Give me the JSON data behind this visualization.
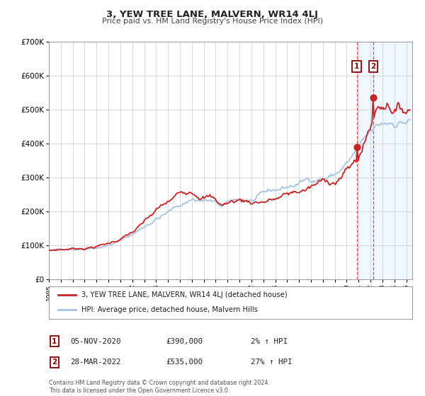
{
  "title": "3, YEW TREE LANE, MALVERN, WR14 4LJ",
  "subtitle": "Price paid vs. HM Land Registry's House Price Index (HPI)",
  "ylim": [
    0,
    700000
  ],
  "yticks": [
    0,
    100000,
    200000,
    300000,
    400000,
    500000,
    600000,
    700000
  ],
  "ytick_labels": [
    "£0",
    "£100K",
    "£200K",
    "£300K",
    "£400K",
    "£500K",
    "£600K",
    "£700K"
  ],
  "xlim_start": 1995.0,
  "xlim_end": 2025.5,
  "xticks": [
    1995,
    1996,
    1997,
    1998,
    1999,
    2000,
    2001,
    2002,
    2003,
    2004,
    2005,
    2006,
    2007,
    2008,
    2009,
    2010,
    2011,
    2012,
    2013,
    2014,
    2015,
    2016,
    2017,
    2018,
    2019,
    2020,
    2021,
    2022,
    2023,
    2024,
    2025
  ],
  "hpi_color": "#a8c4e0",
  "price_color": "#cc2222",
  "sale1_x": 2020.84,
  "sale1_y": 390000,
  "sale2_x": 2022.24,
  "sale2_y": 535000,
  "shade_x1": 2020.84,
  "shade_x2": 2025.5,
  "legend_label1": "3, YEW TREE LANE, MALVERN, WR14 4LJ (detached house)",
  "legend_label2": "HPI: Average price, detached house, Malvern Hills",
  "table_row1": [
    "1",
    "05-NOV-2020",
    "£390,000",
    "2% ↑ HPI"
  ],
  "table_row2": [
    "2",
    "28-MAR-2022",
    "£535,000",
    "27% ↑ HPI"
  ],
  "footnote1": "Contains HM Land Registry data © Crown copyright and database right 2024.",
  "footnote2": "This data is licensed under the Open Government Licence v3.0.",
  "background_color": "#ffffff",
  "plot_bg_color": "#ffffff",
  "grid_color": "#cccccc",
  "shade_color": "#ddeeff",
  "box_color": "#8b0000"
}
